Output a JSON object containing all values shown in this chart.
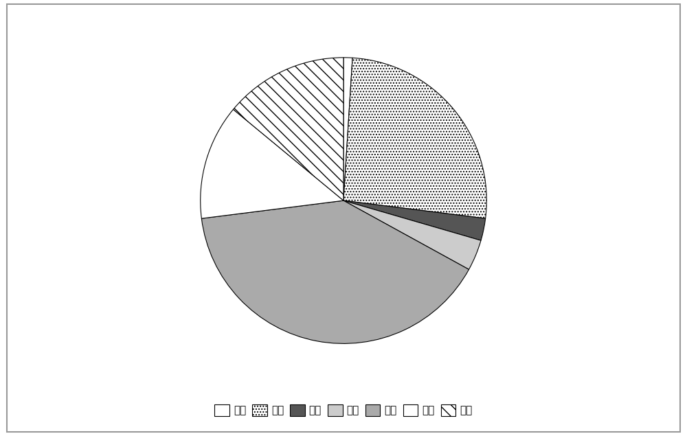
{
  "labels": [
    "愤怒",
    "蔑视",
    "厌恶",
    "害怕",
    "喜悦",
    "悲伤",
    "惊讶"
  ],
  "values": [
    1.0,
    26.0,
    2.5,
    3.5,
    40.0,
    13.0,
    14.0
  ],
  "hatch_list": [
    "",
    "....",
    "",
    "",
    "",
    "====",
    "\\\\"
  ],
  "facecolor_list": [
    "white",
    "white",
    "#555555",
    "#cccccc",
    "#aaaaaa",
    "white",
    "white"
  ],
  "startangle": 90,
  "counterclock": false,
  "legend_fontsize": 11,
  "figsize": [
    10.0,
    6.35
  ],
  "dpi": 100,
  "background_color": "#ffffff",
  "border_color": "#999999"
}
